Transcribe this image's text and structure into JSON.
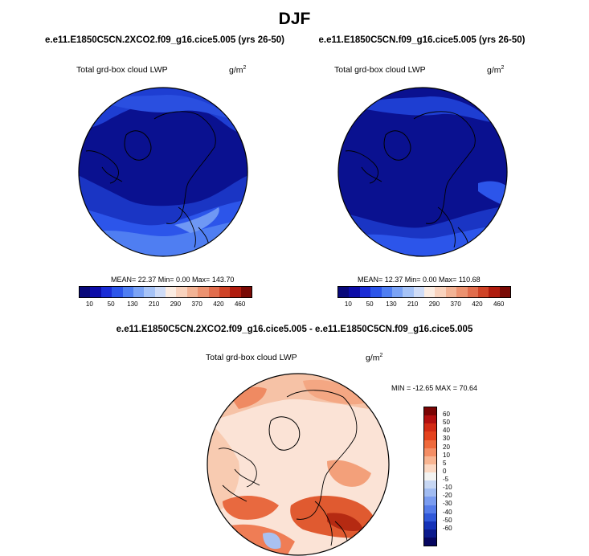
{
  "page_title": "DJF",
  "panels": {
    "left": {
      "case_title": "e.e11.E1850C5CN.2XCO2.f09_g16.cice5.005 (yrs 26-50)",
      "variable": "Total grd-box cloud LWP",
      "units_base": "g/m",
      "units_exp": "2",
      "stats_text": "MEAN= 22.37  Min=  0.00  Max= 143.70",
      "mean": 22.37,
      "min": 0.0,
      "max": 143.7
    },
    "right": {
      "case_title": "e.e11.E1850C5CN.f09_g16.cice5.005 (yrs 26-50)",
      "variable": "Total grd-box cloud LWP",
      "units_base": "g/m",
      "units_exp": "2",
      "stats_text": "MEAN= 12.37  Min=  0.00  Max= 110.68",
      "mean": 12.37,
      "min": 0.0,
      "max": 110.68
    },
    "diff": {
      "case_title": "e.e11.E1850C5CN.2XCO2.f09_g16.cice5.005 - e.e11.E1850C5CN.f09_g16.cice5.005",
      "variable": "Total grd-box cloud LWP",
      "units_base": "g/m",
      "units_exp": "2",
      "stats_text": "MIN = -12.65 MAX =  70.64",
      "min": -12.65,
      "max": 70.64
    }
  },
  "abs_colorbar": {
    "colors": [
      "#08087a",
      "#0c0ca8",
      "#1a2cd6",
      "#2c55ea",
      "#4f7ef2",
      "#7ba3f5",
      "#a6c3f7",
      "#cfdcf7",
      "#fbece2",
      "#f9d3be",
      "#f2b395",
      "#ec9270",
      "#e16d4d",
      "#cf4327",
      "#b01c0e",
      "#7a0a05"
    ],
    "labels": [
      "10",
      "50",
      "130",
      "210",
      "290",
      "370",
      "420",
      "460"
    ]
  },
  "diff_colorbar": {
    "colors": [
      "#7a0404",
      "#b20f0f",
      "#d22a14",
      "#e4421d",
      "#ef6a3c",
      "#f48e65",
      "#f8b592",
      "#fbd8c3",
      "#f3f3f1",
      "#c7d7f3",
      "#a1bcf2",
      "#7a9cf0",
      "#557ce9",
      "#3058d9",
      "#1432b8",
      "#0b1a8c",
      "#060660"
    ],
    "labels": [
      "60",
      "50",
      "40",
      "30",
      "20",
      "10",
      "5",
      "0",
      "-5",
      "-10",
      "-20",
      "-30",
      "-40",
      "-50",
      "-60"
    ]
  }
}
